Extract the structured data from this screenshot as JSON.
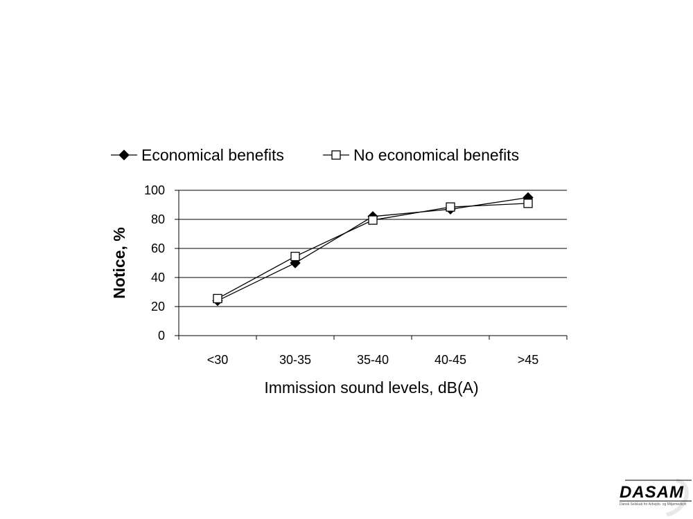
{
  "chart_data": {
    "type": "line",
    "categories": [
      "<30",
      "30-35",
      "35-40",
      "40-45",
      ">45"
    ],
    "series": [
      {
        "name": "Economical benefits",
        "values": [
          24,
          50,
          82,
          87,
          95
        ],
        "marker": "filled-diamond",
        "color": "#000000"
      },
      {
        "name": "No economical benefits",
        "values": [
          25.5,
          54.5,
          79.5,
          88.5,
          91
        ],
        "marker": "open-square",
        "color": "#000000"
      }
    ],
    "title": "",
    "xlabel": "Immission sound levels, dB(A)",
    "ylabel": "Notice, %",
    "ylim": [
      0,
      100
    ],
    "yticks": [
      "0",
      "20",
      "40",
      "60",
      "80",
      "100"
    ],
    "grid": true,
    "legend_position": "top"
  },
  "logo": {
    "name": "DASAM",
    "subtitle": "Dansk Selskab for Arbejds- og Miljømedicin",
    "icon": "dasam-logo-icon"
  }
}
